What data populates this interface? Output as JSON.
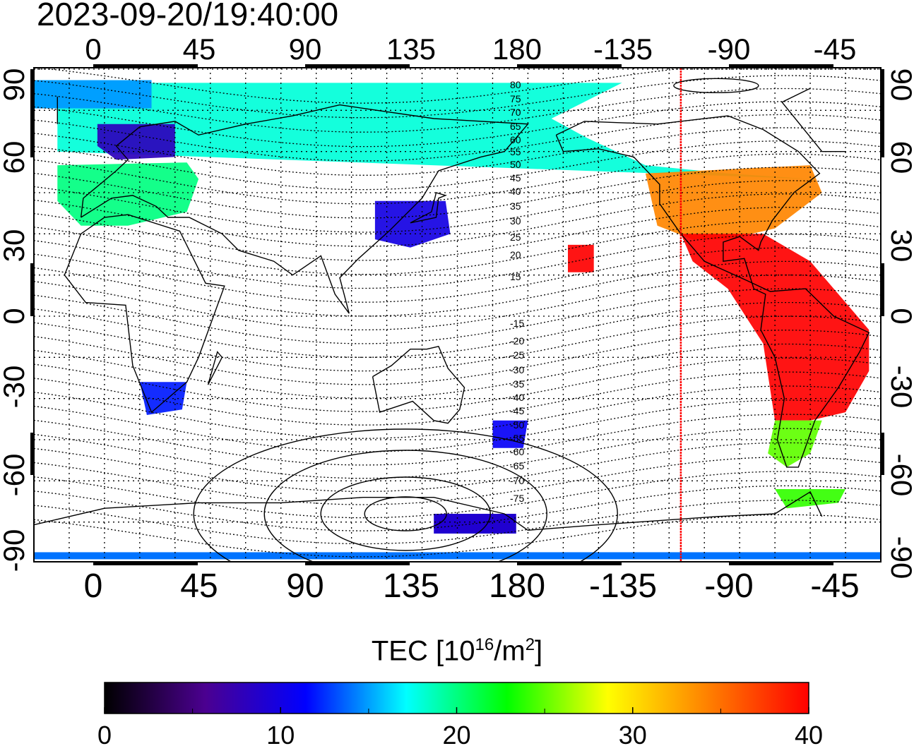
{
  "header": {
    "timestamp": "2023-09-20/19:40:00"
  },
  "map": {
    "projection": "cylindrical, centered on 150E",
    "lon_ticks_top": [
      "0",
      "45",
      "90",
      "135",
      "180",
      "-135",
      "-90",
      "-45"
    ],
    "lon_ticks_bottom": [
      "0",
      "45",
      "90",
      "135",
      "180",
      "-135",
      "-90",
      "-45"
    ],
    "lat_ticks_left": [
      "90",
      "60",
      "30",
      "0",
      "-30",
      "-60",
      "-90"
    ],
    "lat_ticks_right": [
      "90",
      "60",
      "30",
      "0",
      "-30",
      "-60",
      "-90"
    ],
    "contour_labels": [
      "80",
      "75",
      "70",
      "65",
      "60",
      "55",
      "50",
      "45",
      "40",
      "35",
      "30",
      "25",
      "20",
      "15",
      "-15",
      "-20",
      "-25",
      "-30",
      "-35",
      "-40",
      "-45",
      "-50",
      "-55",
      "-60",
      "-65",
      "-70",
      "-75"
    ],
    "grid": "dotted, every 15 degrees",
    "terminator_longitude": -115,
    "terminator_color": "#ff0000",
    "tec_regions": [
      {
        "region": "North America mid-latitudes",
        "tec": 34
      },
      {
        "region": "Central and South America",
        "tec": 40
      },
      {
        "region": "Canada / Greenland",
        "tec": 18
      },
      {
        "region": "Europe",
        "tec": 20
      },
      {
        "region": "Scandinavia",
        "tec": 8
      },
      {
        "region": "Japan",
        "tec": 10
      },
      {
        "region": "South Africa",
        "tec": 12
      },
      {
        "region": "New Zealand",
        "tec": 11
      },
      {
        "region": "Southern Argentina",
        "tec": 25
      },
      {
        "region": "Antarctic Peninsula",
        "tec": 24
      },
      {
        "region": "Hawaii",
        "tec": 40
      },
      {
        "region": "Antarctica (Pacific sector)",
        "tec": 9
      }
    ]
  },
  "colorbar": {
    "label_main": "TEC  [10",
    "label_exp1": "16",
    "label_mid": "/m",
    "label_exp2": "2",
    "label_end": "]",
    "min": 0,
    "max": 40,
    "ticks": [
      "0",
      "10",
      "20",
      "30",
      "40"
    ],
    "colors": [
      "#000000",
      "#4b0090",
      "#0000ff",
      "#00ffff",
      "#00ff00",
      "#ffff00",
      "#ff8000",
      "#ff0000"
    ]
  }
}
